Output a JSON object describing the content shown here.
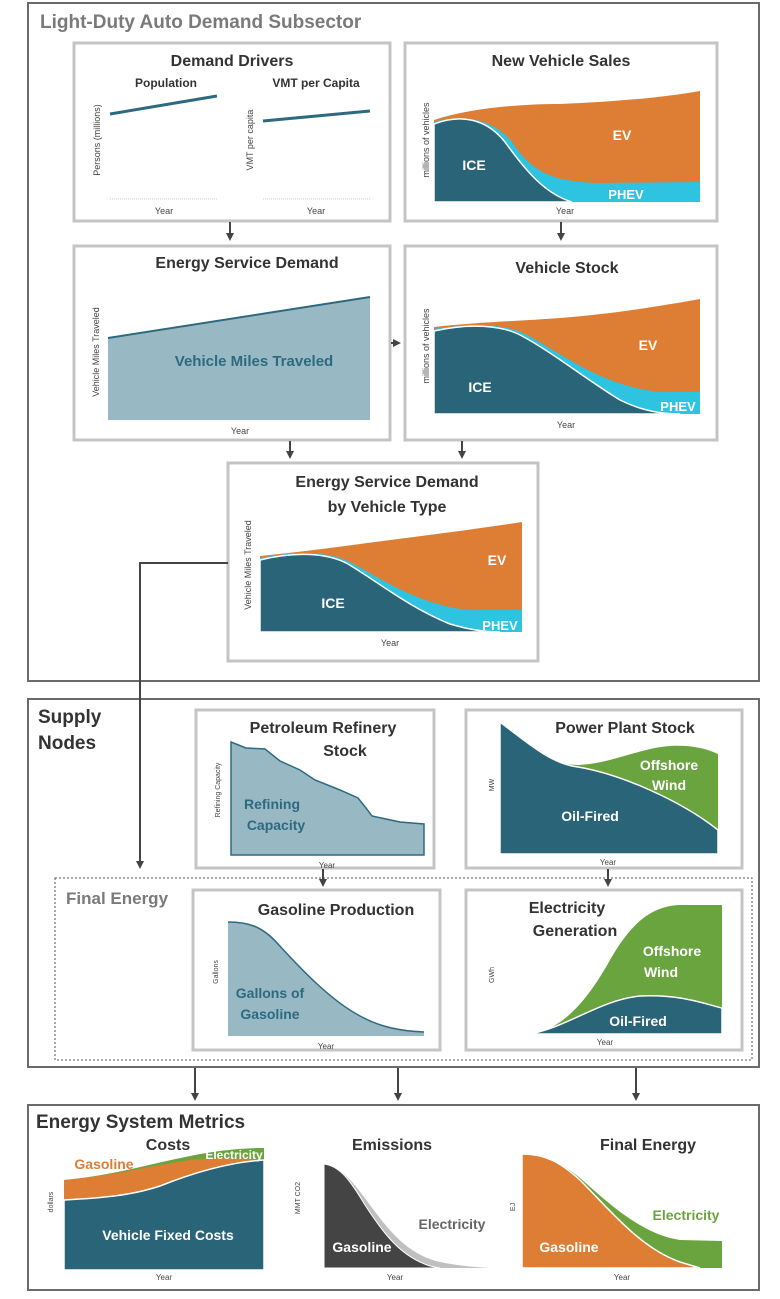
{
  "colors": {
    "ice": "#2a6478",
    "ev": "#dd7e34",
    "phev": "#2ec3e0",
    "vmt_fill": "#98b9c4",
    "vmt_line": "#2d6a80",
    "wind": "#6aa43e",
    "gasoline_emis": "#444444",
    "frame": "#6b6b6b",
    "panel_border": "#c4c4c4",
    "final_energy_label": "#7a7a7a"
  },
  "sections": {
    "demand_title": "Light-Duty Auto Demand Subsector",
    "supply_title": "Supply\nNodes",
    "final_energy_title": "Final Energy",
    "metrics_title": "Energy System Metrics"
  },
  "demand_drivers": {
    "title": "Demand Drivers",
    "population": {
      "subtitle": "Population",
      "ylabel": "Persons (millions)",
      "xlabel": "Year"
    },
    "vmt_per_capita": {
      "subtitle": "VMT per Capita",
      "ylabel": "VMT per capita",
      "xlabel": "Year"
    }
  },
  "new_vehicle_sales": {
    "title": "New Vehicle Sales",
    "ylabel": "millions of vehicles",
    "xlabel": "Year",
    "labels": {
      "ice": "ICE",
      "ev": "EV",
      "phev": "PHEV"
    }
  },
  "energy_service_demand": {
    "title": "Energy Service Demand",
    "ylabel": "Vehicle Miles Traveled",
    "xlabel": "Year",
    "area_label": "Vehicle Miles Traveled"
  },
  "vehicle_stock": {
    "title": "Vehicle Stock",
    "ylabel": "millions of vehicles",
    "xlabel": "Year",
    "labels": {
      "ice": "ICE",
      "ev": "EV",
      "phev": "PHEV"
    }
  },
  "esd_by_type": {
    "title_line1": "Energy Service Demand",
    "title_line2": "by Vehicle Type",
    "ylabel": "Vehicle Miles Traveled",
    "xlabel": "Year",
    "labels": {
      "ice": "ICE",
      "ev": "EV",
      "phev": "PHEV"
    }
  },
  "refinery_stock": {
    "title_line1": "Petroleum Refinery",
    "title_line2": "Stock",
    "ylabel": "Refining Capacity",
    "xlabel": "Year",
    "area_label_line1": "Refining",
    "area_label_line2": "Capacity"
  },
  "power_plant_stock": {
    "title": "Power Plant Stock",
    "ylabel": "MW",
    "xlabel": "Year",
    "labels": {
      "oil": "Oil-Fired",
      "wind_line1": "Offshore",
      "wind_line2": "Wind"
    }
  },
  "gasoline_production": {
    "title": "Gasoline Production",
    "ylabel": "Gallons",
    "xlabel": "Year",
    "area_label_line1": "Gallons of",
    "area_label_line2": "Gasoline"
  },
  "electricity_generation": {
    "title_line1": "Electricity",
    "title_line2": "Generation",
    "ylabel": "GWh",
    "xlabel": "Year",
    "labels": {
      "oil": "Oil-Fired",
      "wind_line1": "Offshore",
      "wind_line2": "Wind"
    }
  },
  "costs": {
    "title": "Costs",
    "ylabel": "dollars",
    "xlabel": "Year",
    "labels": {
      "gasoline": "Gasoline",
      "electricity": "Electricity",
      "fixed": "Vehicle Fixed Costs"
    }
  },
  "emissions": {
    "title": "Emissions",
    "ylabel": "MMT CO2",
    "xlabel": "Year",
    "labels": {
      "gasoline": "Gasoline",
      "electricity": "Electricity"
    }
  },
  "final_energy_metric": {
    "title": "Final Energy",
    "ylabel": "EJ",
    "xlabel": "Year",
    "labels": {
      "gasoline": "Gasoline",
      "electricity": "Electricity"
    }
  }
}
